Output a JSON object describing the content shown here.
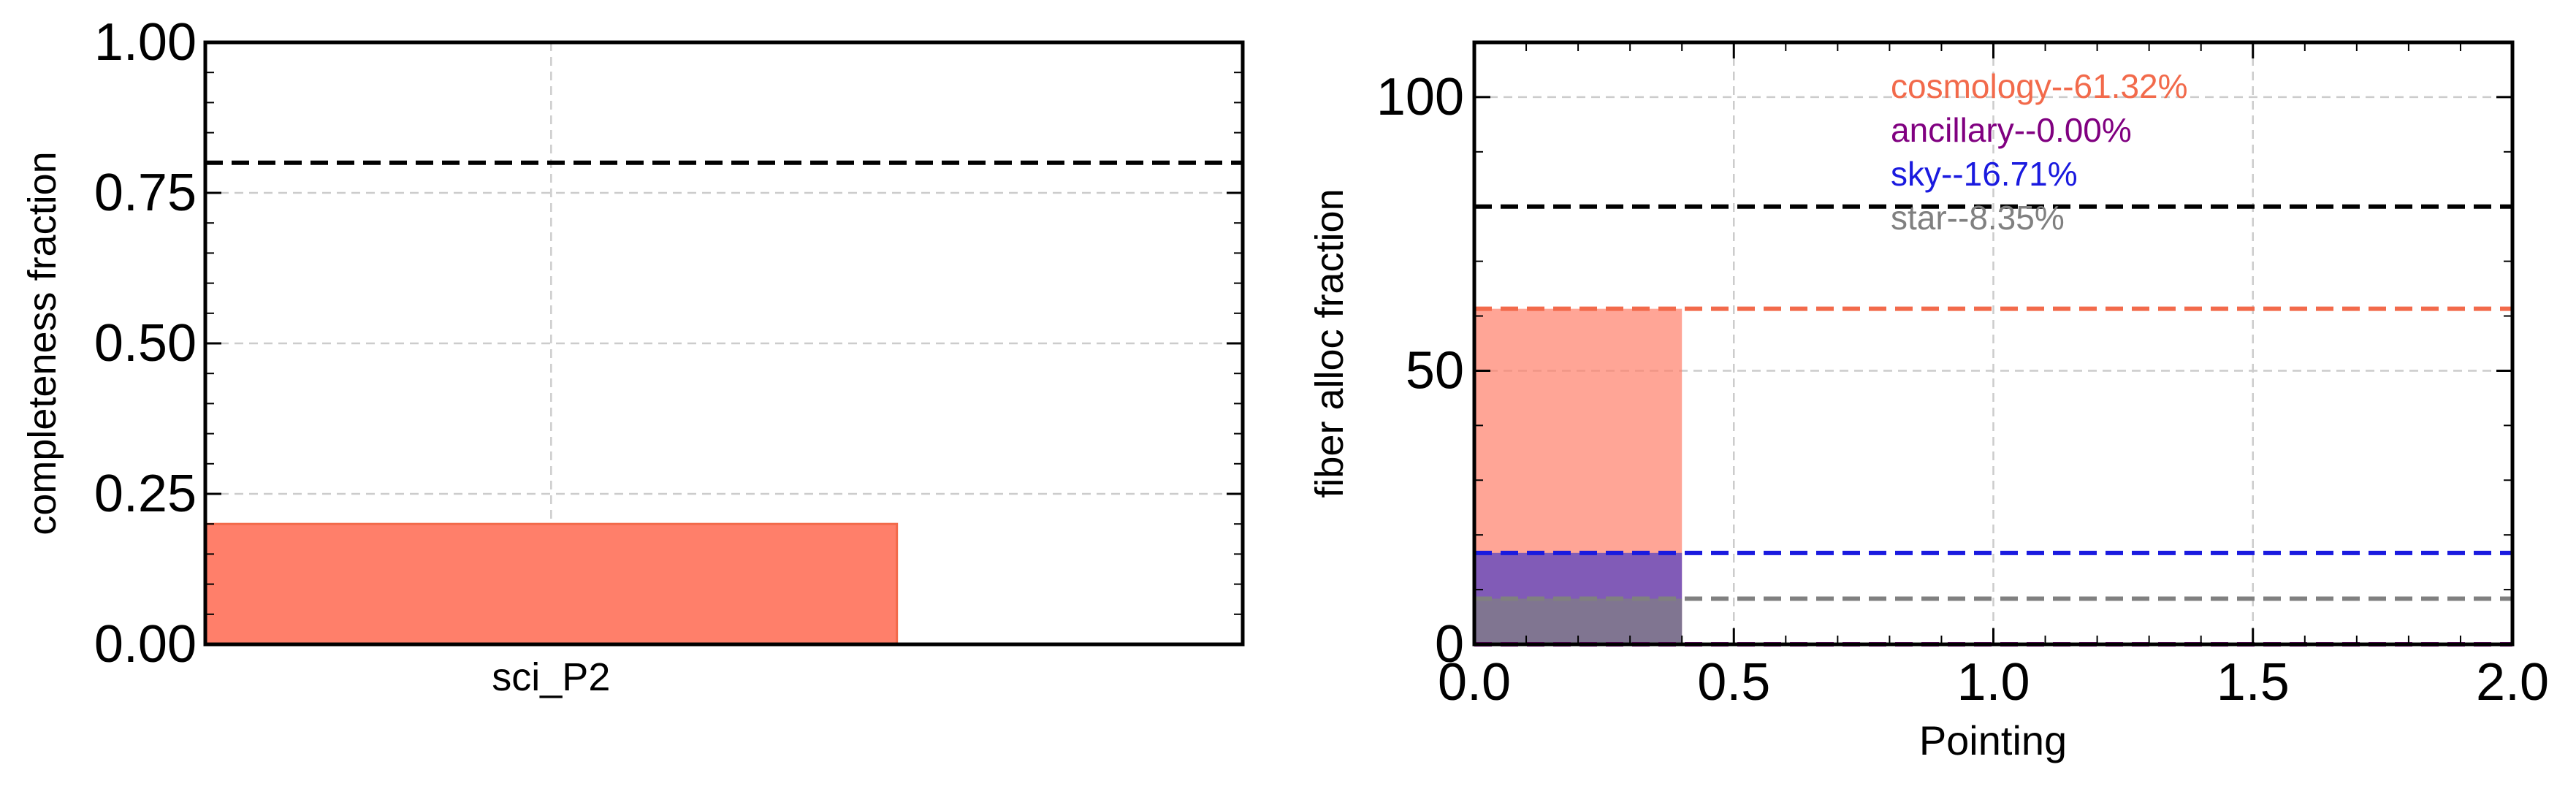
{
  "chart_data": [
    {
      "type": "bar",
      "categories": [
        "sci_P2"
      ],
      "values": [
        0.2
      ],
      "ylabel": "completeness fraction",
      "xlabel": "",
      "ylim": [
        0,
        1.0
      ],
      "yticks": [
        "0.00",
        "0.25",
        "0.50",
        "0.75",
        "1.00"
      ],
      "reference_line": 0.8,
      "grid": true,
      "bar_color": "#ff7f6a"
    },
    {
      "type": "bar",
      "xlabel": "Pointing",
      "ylabel": "fiber alloc fraction",
      "xlim": [
        0,
        2.0
      ],
      "ylim": [
        0,
        110
      ],
      "xticks": [
        "0.0",
        "0.5",
        "1.0",
        "1.5",
        "2.0"
      ],
      "yticks": [
        "0",
        "50",
        "100"
      ],
      "reference_line": 80,
      "grid": true,
      "bars": [
        {
          "x_start": 0,
          "x_end": 0.4,
          "value": 61.32,
          "color": "#ff7f6a"
        },
        {
          "x_start": 0,
          "x_end": 0.4,
          "value": 0.0,
          "color": "#800080"
        },
        {
          "x_start": 0,
          "x_end": 0.4,
          "value": 16.71,
          "color": "#4b3cc4"
        },
        {
          "x_start": 0,
          "x_end": 0.4,
          "value": 8.35,
          "color": "#808080"
        }
      ],
      "series": [
        {
          "name": "cosmology--61.32%",
          "value": 61.32,
          "color": "#f26a4b"
        },
        {
          "name": "ancillary--0.00%",
          "value": 0.0,
          "color": "#800080"
        },
        {
          "name": "sky--16.71%",
          "value": 16.71,
          "color": "#1a1adf"
        },
        {
          "name": "star--8.35%",
          "value": 8.35,
          "color": "#808080"
        }
      ],
      "legend_placement": "top-center"
    }
  ]
}
